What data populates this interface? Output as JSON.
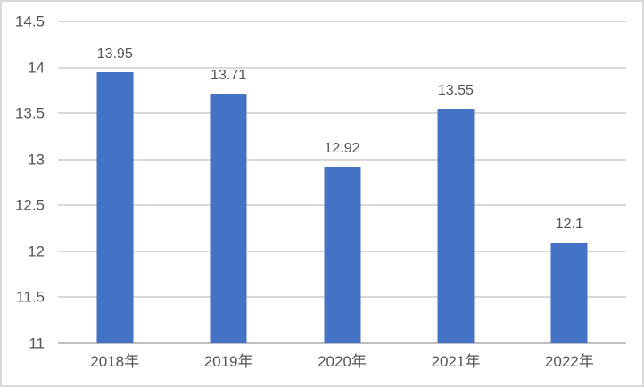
{
  "chart_data": {
    "type": "bar",
    "categories": [
      "2018年",
      "2019年",
      "2020年",
      "2021年",
      "2022年"
    ],
    "values": [
      13.95,
      13.71,
      12.92,
      13.55,
      12.1
    ],
    "data_labels": [
      "13.95",
      "13.71",
      "12.92",
      "13.55",
      "12.1"
    ],
    "title": "",
    "xlabel": "",
    "ylabel": "",
    "ylim": [
      11,
      14.5
    ],
    "ytick_step": 0.5,
    "ytick_labels": [
      "14.5",
      "14",
      "13.5",
      "13",
      "12.5",
      "12",
      "11.5",
      "11"
    ],
    "grid": true,
    "legend_position": "none",
    "colors": {
      "bar": "#4472c4",
      "gridline": "#d9d9d9",
      "axis_line": "#bfbfbf",
      "text": "#555555",
      "border": "#d9d9d9",
      "background": "#ffffff"
    }
  }
}
